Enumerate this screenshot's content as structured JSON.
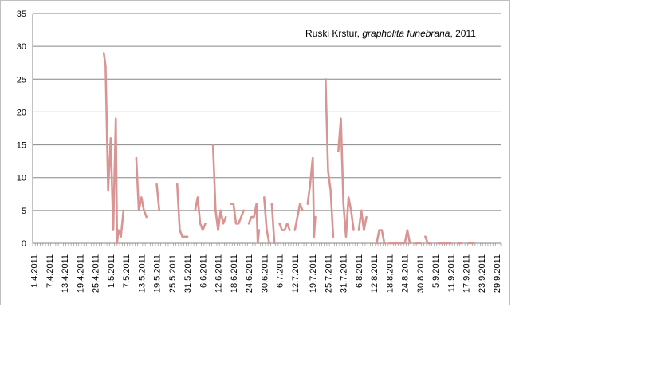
{
  "chart_data": {
    "type": "line",
    "title": {
      "prefix": "Ruski Krstur, ",
      "species": "grapholita funebrana",
      "suffix": ", 2011"
    },
    "xlabel": "",
    "ylabel": "",
    "ylim": [
      0,
      35
    ],
    "yticks": [
      "0",
      "5",
      "10",
      "15",
      "20",
      "25",
      "30",
      "35"
    ],
    "grid": true,
    "legend": "none",
    "line_color": "#d99594",
    "xticks": [
      "1.4.2011",
      "7.4.2011",
      "13.4.2011",
      "19.4.2011",
      "25.4.2011",
      "1.5.2011",
      "7.5.2011",
      "13.5.2011",
      "19.5.2011",
      "25.5.2011",
      "31.5.2011",
      "6.6.2011",
      "12.6.2011",
      "18.6.2011",
      "24.6.2011",
      "30.6.2011",
      "6.7.2011",
      "12.7.2011",
      "19.7.2011",
      "25.7.2011",
      "31.7.2011",
      "6.8.2011",
      "12.8.2011",
      "18.8.2011",
      "24.8.2011",
      "30.8.2011",
      "5.9.2011",
      "11.9.2011",
      "17.9.2011",
      "23.9.2011",
      "29.9.2011"
    ],
    "segments": [
      [
        [
          27.3,
          29
        ],
        [
          28,
          27
        ],
        [
          29,
          8
        ],
        [
          30,
          16
        ],
        [
          31,
          2
        ],
        [
          32,
          19
        ],
        [
          32.5,
          0
        ],
        [
          33,
          2
        ],
        [
          34,
          1
        ],
        [
          35,
          5
        ]
      ],
      [
        [
          40,
          13
        ],
        [
          41,
          5
        ],
        [
          42,
          7
        ],
        [
          43,
          5
        ],
        [
          44,
          4
        ]
      ],
      [
        [
          48,
          9
        ],
        [
          49,
          5
        ]
      ],
      [
        [
          56,
          9
        ],
        [
          57,
          2
        ],
        [
          58,
          1
        ],
        [
          60,
          1
        ]
      ],
      [
        [
          63,
          5
        ],
        [
          64,
          7
        ],
        [
          65,
          3
        ],
        [
          66,
          2
        ],
        [
          67,
          3
        ]
      ],
      [
        [
          70,
          15
        ],
        [
          71,
          5
        ],
        [
          72,
          2
        ],
        [
          73,
          5
        ],
        [
          74,
          3
        ],
        [
          75,
          4
        ]
      ],
      [
        [
          77,
          6
        ],
        [
          78,
          6
        ],
        [
          79,
          3
        ],
        [
          80,
          3
        ],
        [
          81,
          4
        ],
        [
          82,
          5
        ]
      ],
      [
        [
          84,
          3
        ],
        [
          85,
          4
        ],
        [
          86,
          4
        ],
        [
          87,
          6
        ],
        [
          87.5,
          0
        ],
        [
          88,
          2
        ]
      ],
      [
        [
          90,
          7
        ],
        [
          91,
          2
        ],
        [
          92,
          0
        ]
      ],
      [
        [
          93,
          6
        ],
        [
          94,
          0
        ]
      ],
      [
        [
          96,
          3
        ],
        [
          97,
          2
        ],
        [
          98,
          2
        ],
        [
          99,
          3
        ],
        [
          100,
          2
        ]
      ],
      [
        [
          102,
          2
        ],
        [
          103,
          4
        ],
        [
          104,
          6
        ],
        [
          105,
          5
        ]
      ],
      [
        [
          107,
          6
        ],
        [
          108,
          9
        ],
        [
          109,
          13
        ],
        [
          109.5,
          1
        ],
        [
          110,
          4
        ]
      ],
      [
        [
          114,
          25
        ],
        [
          115,
          11
        ],
        [
          116,
          8
        ],
        [
          117,
          1
        ]
      ],
      [
        [
          119,
          14
        ],
        [
          120,
          19
        ],
        [
          121,
          6
        ],
        [
          122,
          1
        ],
        [
          123,
          7
        ],
        [
          124,
          5
        ],
        [
          125,
          2
        ]
      ],
      [
        [
          127,
          2
        ],
        [
          128,
          5
        ],
        [
          129,
          2
        ],
        [
          130,
          4
        ]
      ],
      [
        [
          134,
          0
        ],
        [
          135,
          2
        ],
        [
          136,
          2
        ],
        [
          137,
          0
        ]
      ],
      [
        [
          139,
          0
        ],
        [
          140,
          0
        ],
        [
          141,
          0
        ],
        [
          142,
          0
        ],
        [
          143,
          0
        ],
        [
          144,
          0
        ],
        [
          145,
          0
        ],
        [
          146,
          2
        ],
        [
          147,
          0
        ]
      ],
      [
        [
          149,
          0
        ],
        [
          150,
          0
        ],
        [
          151,
          0
        ]
      ],
      [
        [
          153,
          1
        ],
        [
          154,
          0
        ],
        [
          155,
          0
        ]
      ],
      [
        [
          158,
          0
        ],
        [
          159,
          0
        ],
        [
          160,
          0
        ],
        [
          161,
          0
        ],
        [
          162,
          0
        ],
        [
          163,
          0
        ]
      ],
      [
        [
          166,
          0
        ],
        [
          167,
          0
        ]
      ],
      [
        [
          170,
          0
        ],
        [
          171,
          0
        ],
        [
          172,
          0
        ]
      ]
    ]
  }
}
